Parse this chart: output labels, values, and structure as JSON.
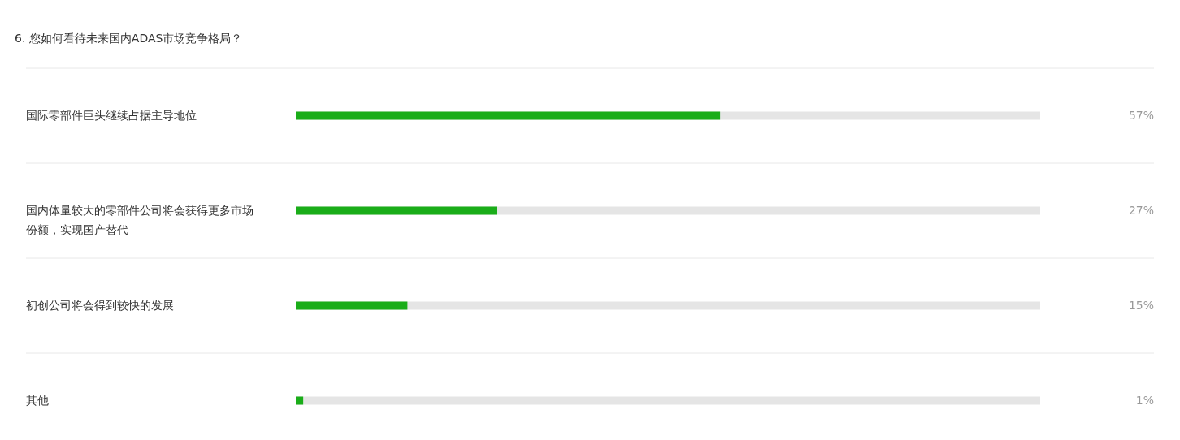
{
  "chart_data": {
    "type": "bar",
    "orientation": "horizontal",
    "title": "6. 您如何看待未来国内ADAS市场竞争格局？",
    "categories": [
      "国际零部件巨头继续占据主导地位",
      "国内体量较大的零部件公司将会获得更多市场份额，实现国产替代",
      "初创公司将会得到较快的发展",
      "其他"
    ],
    "values": [
      57,
      27,
      15,
      1
    ],
    "value_labels": [
      "57%",
      "27%",
      "15%",
      "1%"
    ],
    "color": "#1aad19",
    "xlim": [
      0,
      100
    ],
    "tick_labels": "y",
    "grid": "y"
  }
}
